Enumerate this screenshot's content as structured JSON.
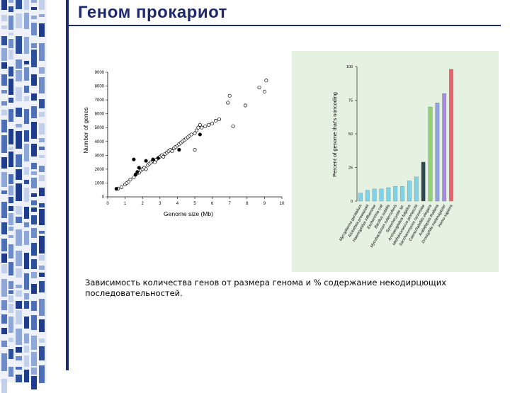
{
  "slide": {
    "title": "Геном прокариот",
    "caption": "Зависимость количества генов от размера генома и % содержание некодирцющих последовательностей.",
    "accent_color": "#1f2a6e"
  },
  "chart_data": [
    {
      "type": "scatter",
      "xlabel": "Genome size (Mb)",
      "ylabel": "Number of genes",
      "xlim": [
        0,
        10
      ],
      "ylim": [
        0,
        9000
      ],
      "xticks": [
        0,
        1,
        2,
        3,
        4,
        5,
        6,
        7,
        8,
        9,
        10
      ],
      "yticks": [
        0,
        1000,
        2000,
        3000,
        4000,
        5000,
        6000,
        7000,
        8000,
        9000
      ],
      "grid": false,
      "series": [
        {
          "marker": "open-circle",
          "points": [
            [
              0.6,
              600
            ],
            [
              0.8,
              700
            ],
            [
              1.0,
              900
            ],
            [
              1.1,
              1000
            ],
            [
              1.2,
              1100
            ],
            [
              1.3,
              1250
            ],
            [
              1.5,
              1400
            ],
            [
              1.6,
              1600
            ],
            [
              1.7,
              1700
            ],
            [
              1.8,
              1750
            ],
            [
              1.9,
              1900
            ],
            [
              2.0,
              2000
            ],
            [
              2.1,
              2100
            ],
            [
              2.2,
              2000
            ],
            [
              2.3,
              2300
            ],
            [
              2.4,
              2400
            ],
            [
              2.5,
              2500
            ],
            [
              2.6,
              2600
            ],
            [
              2.7,
              2500
            ],
            [
              2.8,
              2700
            ],
            [
              2.9,
              2800
            ],
            [
              3.0,
              2900
            ],
            [
              3.1,
              3000
            ],
            [
              3.2,
              2900
            ],
            [
              3.3,
              3100
            ],
            [
              3.4,
              3200
            ],
            [
              3.5,
              3300
            ],
            [
              3.6,
              3400
            ],
            [
              3.7,
              3300
            ],
            [
              3.8,
              3500
            ],
            [
              3.9,
              3600
            ],
            [
              4.0,
              3700
            ],
            [
              4.1,
              3800
            ],
            [
              4.2,
              3900
            ],
            [
              4.3,
              4000
            ],
            [
              4.4,
              4100
            ],
            [
              4.5,
              4200
            ],
            [
              4.6,
              4300
            ],
            [
              4.7,
              4400
            ],
            [
              4.8,
              4500
            ],
            [
              5.0,
              4600
            ],
            [
              5.1,
              4800
            ],
            [
              5.2,
              5000
            ],
            [
              5.3,
              5200
            ],
            [
              5.4,
              5000
            ],
            [
              5.6,
              5100
            ],
            [
              5.8,
              5200
            ],
            [
              6.0,
              5300
            ],
            [
              6.2,
              5500
            ],
            [
              6.4,
              5600
            ],
            [
              5.0,
              3400
            ],
            [
              6.9,
              6800
            ],
            [
              7.0,
              7300
            ],
            [
              7.2,
              5100
            ],
            [
              7.9,
              6600
            ],
            [
              8.7,
              7900
            ],
            [
              9.0,
              7600
            ],
            [
              9.1,
              8400
            ]
          ]
        },
        {
          "marker": "filled-circle",
          "points": [
            [
              0.5,
              580
            ],
            [
              1.5,
              2700
            ],
            [
              1.6,
              1600
            ],
            [
              1.7,
              1800
            ],
            [
              1.8,
              2100
            ],
            [
              2.2,
              2600
            ],
            [
              2.6,
              2700
            ],
            [
              2.9,
              2800
            ],
            [
              4.1,
              3400
            ],
            [
              5.3,
              4500
            ]
          ]
        }
      ]
    },
    {
      "type": "bar",
      "ylabel": "Percent of genome that's noncoding",
      "ylim": [
        0,
        100
      ],
      "yticks": [
        0,
        25,
        50,
        75,
        100
      ],
      "categories": [
        "Mycoplasma genitalium",
        "Rickettsia prowazekii",
        "Haemophilus influenzae",
        "Escherichia coli",
        "Bacillus subtilis",
        "Mycobacterium tuberculosis",
        "Synechocystis sp.",
        "Archaeoglobus fulgidus",
        "Methanococcus jannaschii",
        "Saccharomyces cerevisiae",
        "Caenorhabditis elegans",
        "Arabidopsis thaliana",
        "Drosophila melanogaster",
        "Homo sapiens"
      ],
      "values": [
        6,
        8,
        9,
        9,
        10,
        11,
        11,
        15,
        18,
        29,
        70,
        73,
        80,
        98
      ],
      "colors": [
        "#7fd3e6",
        "#7fd3e6",
        "#7fd3e6",
        "#7fd3e6",
        "#7fd3e6",
        "#7fd3e6",
        "#7fd3e6",
        "#7fd3e6",
        "#7fd3e6",
        "#2f4a52",
        "#8fd46a",
        "#8fa0e8",
        "#a78be0",
        "#e8646a"
      ]
    }
  ]
}
